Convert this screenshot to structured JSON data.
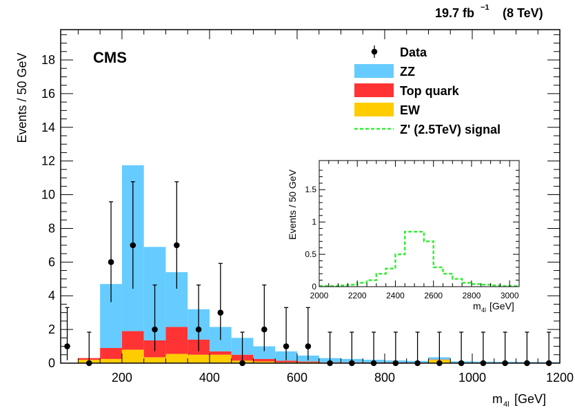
{
  "header": {
    "lumi_value": "19.7 fb",
    "lumi_exp": "−1",
    "energy": "(8 TeV)"
  },
  "chart_data": [
    {
      "type": "bar",
      "subtype": "stacked-histogram-with-data-points",
      "experiment_label": "CMS",
      "xlabel_main": "m",
      "xlabel_sub": "4l",
      "xlabel_unit": "[GeV]",
      "ylabel": "Events / 50 GeV",
      "xlim": [
        60,
        1200
      ],
      "ylim": [
        0,
        19.8
      ],
      "x_ticks": [
        200,
        400,
        600,
        800,
        1000,
        1200
      ],
      "y_ticks": [
        0,
        2,
        4,
        6,
        8,
        10,
        12,
        14,
        16,
        18
      ],
      "bin_edges": [
        100,
        150,
        200,
        250,
        300,
        350,
        400,
        450,
        500,
        550,
        600,
        650,
        700,
        750,
        800,
        850,
        900,
        950,
        1000,
        1050,
        1100,
        1150,
        1200
      ],
      "series": [
        {
          "name": "EW",
          "color": "#ffcc00",
          "values": [
            0.2,
            0.25,
            0.8,
            0.35,
            0.55,
            0.5,
            0.5,
            0.15,
            0.1,
            0.05,
            0.05,
            0.03,
            0.03,
            0.02,
            0.02,
            0.02,
            0.2,
            0.02,
            0.02,
            0.02,
            0.02,
            0.02
          ]
        },
        {
          "name": "Top quark",
          "color": "#ff3333",
          "values": [
            0.1,
            0.65,
            1.1,
            1.0,
            1.6,
            0.9,
            0.2,
            0.35,
            0.15,
            0.1,
            0.05,
            0.02,
            0.02,
            0.02,
            0.02,
            0.01,
            0.02,
            0.01,
            0.01,
            0.01,
            0.01,
            0.01
          ]
        },
        {
          "name": "ZZ",
          "color": "#66ccff",
          "values": [
            0.0,
            3.8,
            9.85,
            5.55,
            3.25,
            1.8,
            1.45,
            1.0,
            0.75,
            0.55,
            0.35,
            0.25,
            0.2,
            0.16,
            0.12,
            0.1,
            0.13,
            0.08,
            0.06,
            0.05,
            0.04,
            0.03
          ]
        }
      ],
      "data_points": {
        "name": "Data",
        "x": [
          75,
          125,
          175,
          225,
          275,
          325,
          375,
          425,
          475,
          525,
          575,
          625,
          675,
          725,
          775,
          825,
          875,
          925,
          975,
          1025,
          1075,
          1125,
          1175
        ],
        "y": [
          1,
          0,
          6,
          7,
          2,
          7,
          2,
          3,
          0,
          2,
          1,
          1,
          0,
          0,
          0,
          0,
          0,
          0,
          0,
          0,
          0,
          0,
          0
        ],
        "err_low": [
          0.83,
          0,
          2.38,
          2.58,
          1.29,
          2.58,
          1.29,
          1.63,
          0,
          1.29,
          0.83,
          0.83,
          0,
          0,
          0,
          0,
          0,
          0,
          0,
          0,
          0,
          0,
          0
        ],
        "err_high": [
          2.3,
          1.84,
          3.58,
          3.77,
          2.64,
          3.77,
          2.64,
          2.92,
          1.84,
          2.64,
          2.3,
          2.3,
          1.84,
          1.84,
          1.84,
          1.84,
          1.84,
          1.84,
          1.84,
          1.84,
          1.84,
          1.84,
          1.84
        ]
      },
      "signal": {
        "name": "Z' (2.5TeV) signal",
        "color": "#33ee33"
      },
      "legend": {
        "placement": "top-right",
        "entries": [
          {
            "label": "Data",
            "kind": "marker"
          },
          {
            "label": "ZZ",
            "kind": "fill",
            "color": "#66ccff"
          },
          {
            "label": "Top quark",
            "kind": "fill",
            "color": "#ff3333"
          },
          {
            "label": "EW",
            "kind": "fill",
            "color": "#ffcc00"
          },
          {
            "label": "Z' (2.5TeV) signal",
            "kind": "dashed",
            "color": "#33ee33"
          }
        ]
      },
      "grid": false
    },
    {
      "type": "line",
      "subtype": "inset-step-histogram",
      "series_name": "Z' (2.5TeV) signal",
      "color": "#33ee33",
      "xlabel_main": "m",
      "xlabel_sub": "4l",
      "xlabel_unit": "[GeV]",
      "ylabel": "Events / 50 GeV",
      "xlim": [
        2000,
        3050
      ],
      "ylim": [
        0,
        1.95
      ],
      "x_ticks": [
        2000,
        2200,
        2400,
        2600,
        2800,
        3000
      ],
      "y_ticks": [
        0,
        0.5,
        1,
        1.5
      ],
      "y_tick_labels": [
        "0",
        "0.5",
        "1",
        "1.5"
      ],
      "bin_edges": [
        2000,
        2050,
        2100,
        2150,
        2200,
        2250,
        2300,
        2350,
        2400,
        2450,
        2500,
        2550,
        2600,
        2650,
        2700,
        2750,
        2800,
        2850,
        2900,
        2950,
        3000,
        3050
      ],
      "values": [
        0.01,
        0.01,
        0.02,
        0.03,
        0.06,
        0.1,
        0.2,
        0.28,
        0.5,
        0.85,
        0.85,
        0.7,
        0.3,
        0.2,
        0.12,
        0.06,
        0.04,
        0.03,
        0.02,
        0.01,
        0.01
      ]
    }
  ]
}
